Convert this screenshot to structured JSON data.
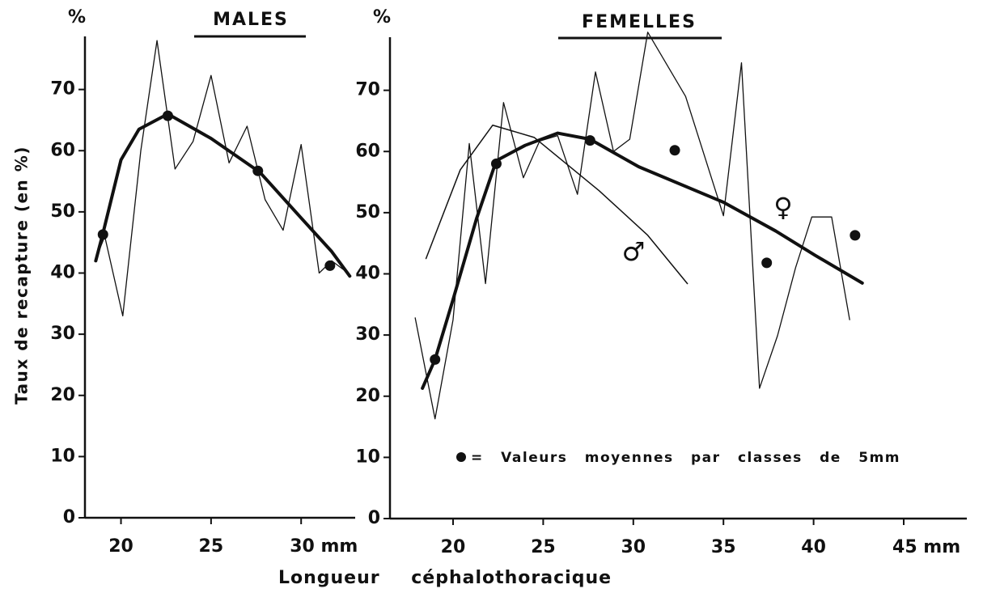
{
  "y_label": "Taux de recapture (en %)",
  "x_label": "Longueur céphalothoracique",
  "chart_data": [
    {
      "type": "line",
      "title": "MALES",
      "unit": "%",
      "xlim": [
        18,
        33
      ],
      "ylim": [
        0,
        80
      ],
      "xticks": [
        20,
        25,
        {
          "value": 30,
          "label": "30 mm"
        }
      ],
      "yticks": [
        0,
        10,
        20,
        30,
        40,
        50,
        60,
        70
      ],
      "series": [
        {
          "style": "line",
          "color": "#111111",
          "x": [
            18.6,
            19.1,
            20.1,
            21.1,
            22.0,
            23.0,
            24.0,
            25.0,
            26.0,
            27.0,
            28.0,
            29.0,
            30.0,
            31.0,
            31.7,
            32.6
          ],
          "values": [
            42.3,
            46,
            33,
            60,
            78,
            57,
            61.5,
            72.3,
            58,
            64,
            52,
            47,
            61,
            40,
            42,
            40
          ]
        },
        {
          "style": "curve",
          "color": "#111111",
          "x": [
            18.6,
            19.0,
            20.0,
            21.0,
            22.6,
            25.0,
            27.7,
            30.0,
            31.7,
            32.7
          ],
          "values": [
            42,
            46.5,
            58.5,
            63.5,
            66,
            62,
            56.5,
            49,
            43.5,
            39.5
          ]
        },
        {
          "style": "dots",
          "color": "#111111",
          "x": [
            19.0,
            22.6,
            27.6,
            31.6
          ],
          "values": [
            46.3,
            65.7,
            56.7,
            41.2
          ]
        }
      ]
    },
    {
      "type": "line",
      "title": "FEMELLES",
      "unit": "%",
      "xlim": [
        16.5,
        48.5
      ],
      "ylim": [
        0,
        80
      ],
      "xticks": [
        20,
        25,
        30,
        35,
        40,
        {
          "value": 45,
          "label": "45 mm"
        }
      ],
      "yticks": [
        0,
        10,
        20,
        30,
        40,
        50,
        60,
        70
      ],
      "legend_note": "= Valeurs moyennes par classes de 5mm",
      "series": [
        {
          "style": "line",
          "color": "#111111",
          "x": [
            17.9,
            19.0,
            20.0,
            20.9,
            21.8,
            22.8,
            23.9,
            24.8,
            25.8,
            26.9,
            27.9,
            28.9,
            29.8,
            30.8,
            32.9,
            35.0,
            36.0,
            37.0,
            38.0,
            39.0,
            39.9,
            41.0,
            42.0
          ],
          "values": [
            32.8,
            16.3,
            32.5,
            61.3,
            38.4,
            68,
            55.7,
            61.7,
            62.6,
            53,
            73,
            60,
            62,
            79.5,
            69,
            49.5,
            74.5,
            21.3,
            29.9,
            41,
            49.3,
            49.3,
            32.5
          ]
        },
        {
          "style": "curve",
          "color": "#111111",
          "name": "♀",
          "x": [
            18.3,
            19.0,
            20.0,
            21.3,
            22.4,
            24.0,
            25.8,
            27.6,
            30.3,
            35.0,
            37.9,
            40.1,
            42.7
          ],
          "values": [
            21.3,
            26,
            35.8,
            49,
            58.5,
            61,
            63,
            62,
            57.5,
            51.7,
            47,
            43,
            38.5
          ]
        },
        {
          "style": "thin-curve",
          "color": "#111111",
          "name": "♂",
          "x": [
            18.5,
            20.4,
            22.2,
            24.5,
            28.1,
            30.8,
            33.0
          ],
          "values": [
            42.5,
            57,
            64.3,
            62.3,
            53.6,
            46.3,
            38.4
          ]
        },
        {
          "style": "dots",
          "color": "#111111",
          "x": [
            19.0,
            22.4,
            27.6,
            32.3,
            37.4,
            42.3
          ],
          "values": [
            26,
            58,
            61.8,
            60.2,
            41.8,
            46.3
          ]
        }
      ]
    }
  ]
}
